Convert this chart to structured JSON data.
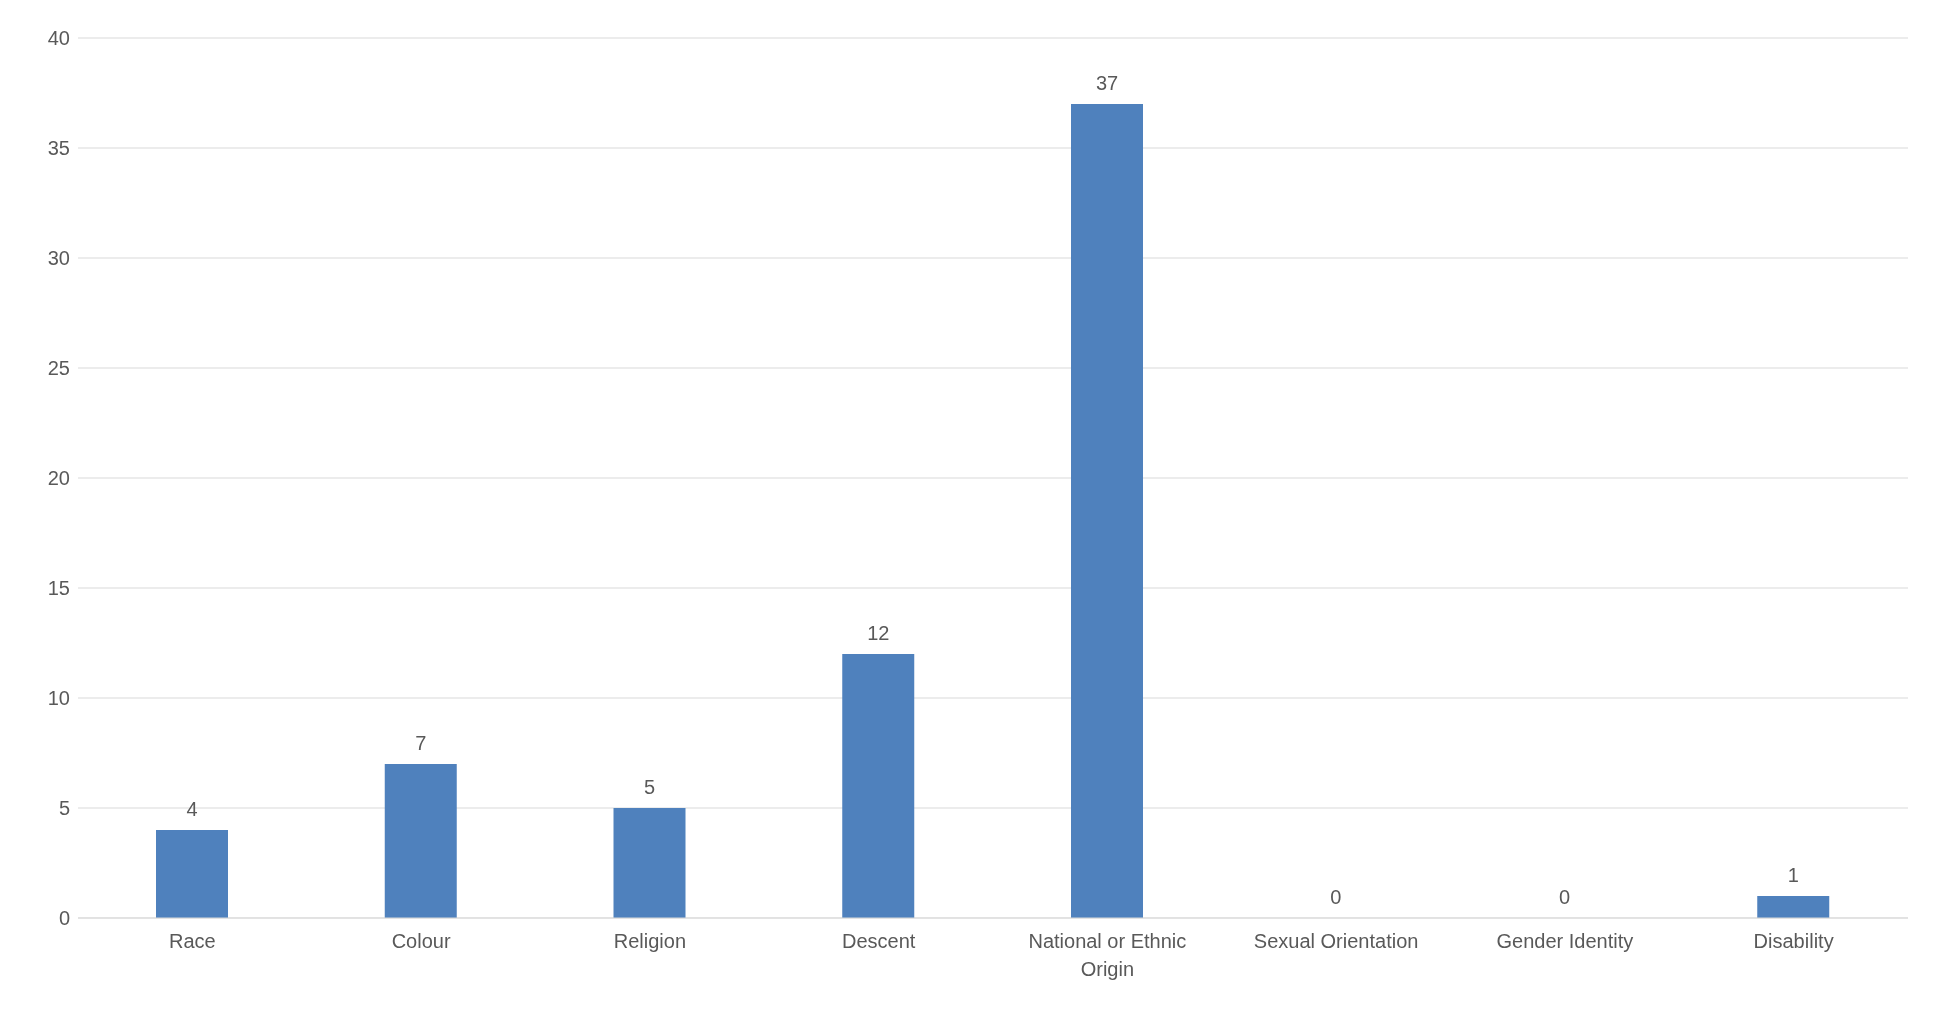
{
  "chart_data": {
    "type": "bar",
    "categories": [
      "Race",
      "Colour",
      "Religion",
      "Descent",
      "National or Ethnic Origin",
      "Sexual Orientation",
      "Gender Identity",
      "Disability"
    ],
    "values": [
      4,
      7,
      5,
      12,
      37,
      0,
      0,
      1
    ],
    "color": "#4f81bd",
    "ylim": [
      0,
      40
    ],
    "yticks": [
      0,
      5,
      10,
      15,
      20,
      25,
      30,
      35,
      40
    ],
    "grid": "y",
    "data_labels": true,
    "legend": false
  }
}
